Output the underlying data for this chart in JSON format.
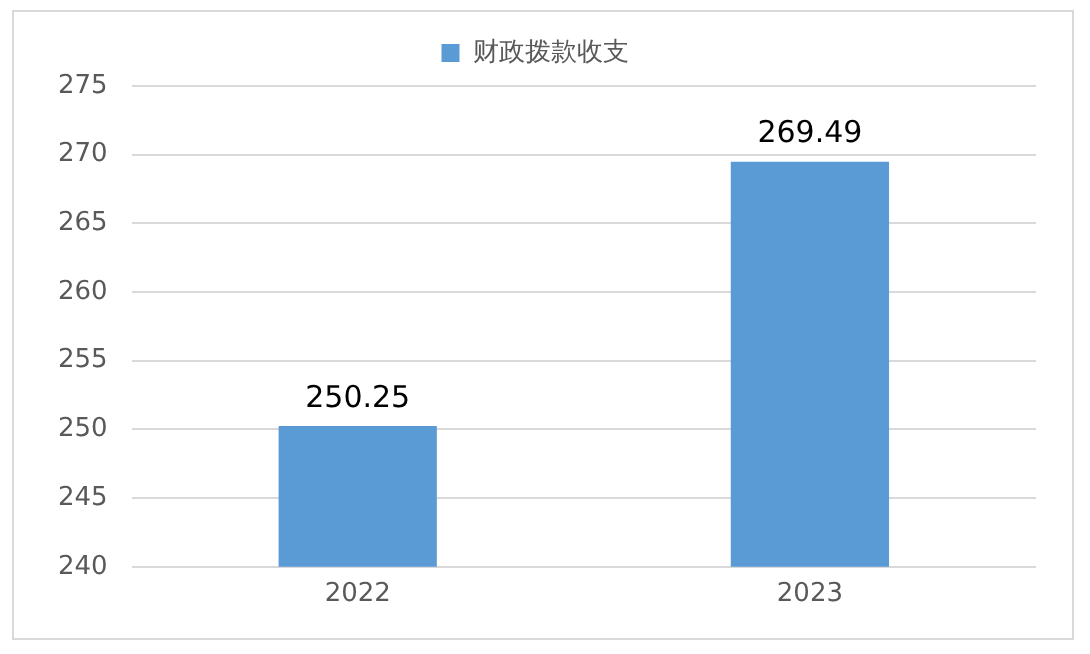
{
  "chart_data": {
    "type": "bar",
    "categories": [
      "2022",
      "2023"
    ],
    "series": [
      {
        "name": "财政拨款收支",
        "color": "#5b9bd5",
        "values": [
          250.25,
          269.49
        ]
      }
    ],
    "ylim": [
      240,
      275
    ],
    "yticks": [
      240,
      245,
      250,
      255,
      260,
      265,
      270,
      275
    ],
    "grid": "y",
    "legend": "top",
    "data_labels": true
  }
}
